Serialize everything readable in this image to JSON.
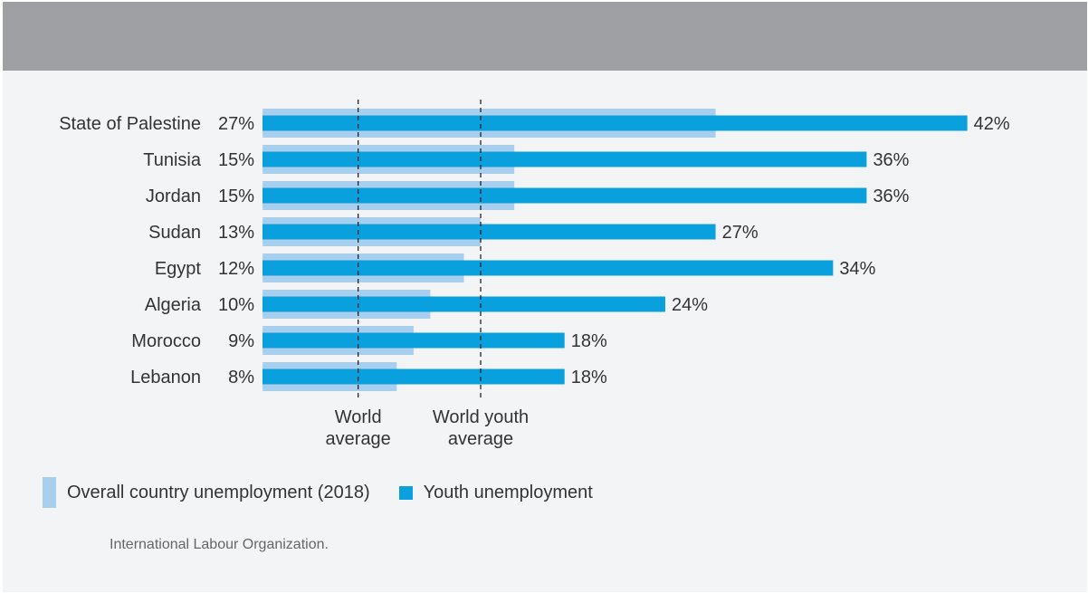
{
  "colors": {
    "overall": "#a8d0ee",
    "youth": "#0aa0dd",
    "band": "#9fa0a3",
    "background": "#f3f4f6",
    "text": "#333333",
    "source_text": "#666666"
  },
  "legend": {
    "overall_label": "Overall country unemployment (2018)",
    "youth_label": "Youth unemployment"
  },
  "source": "International Labour Organization.",
  "chart_data": {
    "type": "bar",
    "orientation": "horizontal",
    "title": "",
    "categories": [
      "State of Palestine",
      "Tunisia",
      "Jordan",
      "Sudan",
      "Egypt",
      "Algeria",
      "Morocco",
      "Lebanon"
    ],
    "series": [
      {
        "name": "Overall country unemployment (2018)",
        "values": [
          27,
          15,
          15,
          13,
          12,
          10,
          9,
          8
        ],
        "labels": [
          "27%",
          "15%",
          "15%",
          "13%",
          "12%",
          "10%",
          "9%",
          "8%"
        ]
      },
      {
        "name": "Youth unemployment",
        "values": [
          42,
          36,
          36,
          27,
          34,
          24,
          18,
          18
        ],
        "labels": [
          "42%",
          "36%",
          "36%",
          "27%",
          "34%",
          "24%",
          "18%",
          "18%"
        ]
      }
    ],
    "reference_lines": [
      {
        "value": 5.7,
        "label_lines": [
          "World",
          "average"
        ]
      },
      {
        "value": 13,
        "label_lines": [
          "World youth",
          "average"
        ]
      }
    ],
    "xlim": [
      0,
      42
    ],
    "grid": false,
    "legend_position": "bottom-left"
  }
}
